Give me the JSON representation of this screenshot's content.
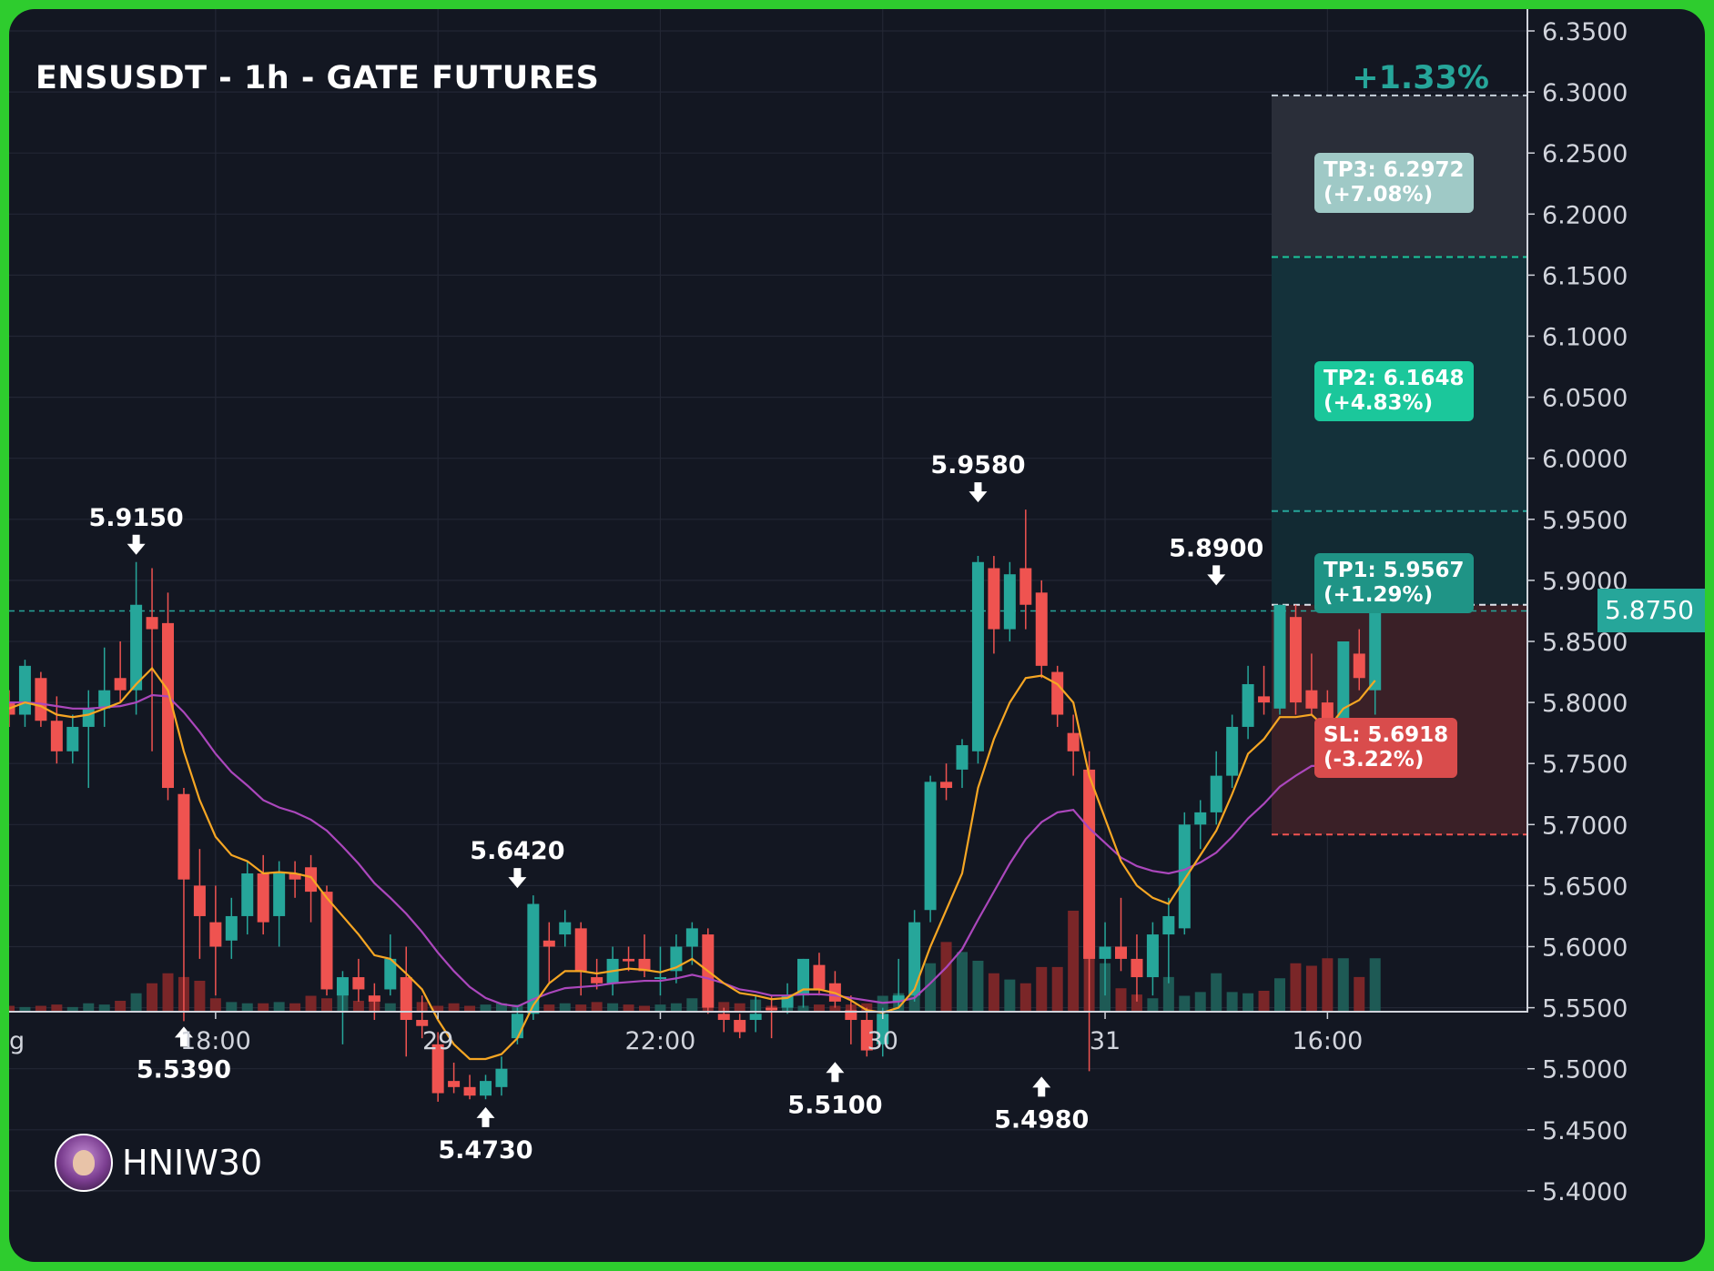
{
  "header": {
    "title": "ENSUSDT - 1h - GATE FUTURES",
    "change": "+1.33%"
  },
  "brand": {
    "name": "HNIW30"
  },
  "current_price": "5.8750",
  "targets": [
    {
      "label": "TP3: 6.2972\n(+7.08%)",
      "price": 6.2972,
      "zone_color": "#2a2e39",
      "label_color": "#9fc9c6",
      "line_color": "#c8d2dc"
    },
    {
      "label": "TP2: 6.1648\n(+4.83%)",
      "price": 6.1648,
      "zone_color": "#14313a",
      "label_color": "#1bc79b",
      "line_color": "#1bc79b"
    },
    {
      "label": "TP1: 5.9567\n(+1.29%)",
      "price": 5.9567,
      "zone_color": "#122a33",
      "label_color": "#1f9486",
      "line_color": "#26a69a"
    }
  ],
  "stop_loss": {
    "label": "SL: 5.6918\n(-3.22%)",
    "price": 5.6918,
    "zone_color": "#3a2027",
    "label_color": "#d94c4c",
    "line_color": "#ef5350"
  },
  "entry_line": 5.88,
  "annotations": [
    {
      "text": "5.9150",
      "candle": 8,
      "dir": "down",
      "price": 5.915
    },
    {
      "text": "5.5390",
      "candle": 11,
      "dir": "up",
      "price": 5.539
    },
    {
      "text": "5.4730",
      "candle": 30,
      "dir": "up",
      "price": 5.473
    },
    {
      "text": "5.6420",
      "candle": 32,
      "dir": "down",
      "price": 5.642
    },
    {
      "text": "5.5100",
      "candle": 52,
      "dir": "up",
      "price": 5.51
    },
    {
      "text": "5.9580",
      "candle": 61,
      "dir": "down",
      "price": 5.958
    },
    {
      "text": "5.4980",
      "candle": 65,
      "dir": "up",
      "price": 5.498
    },
    {
      "text": "5.8900",
      "candle": 76,
      "dir": "down",
      "price": 5.89
    }
  ],
  "colors": {
    "up": "#26a69a",
    "down": "#ef5350",
    "grid": "#232734",
    "axis": "#d1d4dc",
    "ema_fast": "#f6a623",
    "ema_slow": "#ab47bc",
    "vol_up": "#1e5a55",
    "vol_down": "#7a2628"
  },
  "chart_data": {
    "type": "candlestick",
    "title": "ENSUSDT - 1h - GATE FUTURES",
    "ylim": [
      5.38,
      6.36
    ],
    "y_ticks": [
      "6.3500",
      "6.3000",
      "6.2500",
      "6.2000",
      "6.1500",
      "6.1000",
      "6.0500",
      "6.0000",
      "5.9500",
      "5.9000",
      "5.8500",
      "5.8000",
      "5.7500",
      "5.7000",
      "5.6500",
      "5.6000",
      "5.5500",
      "5.5000",
      "5.4500",
      "5.4000"
    ],
    "x_ticks": [
      {
        "label": "g",
        "candle": -0.3
      },
      {
        "label": "18:00",
        "candle": 13
      },
      {
        "label": "29",
        "candle": 27
      },
      {
        "label": "22:00",
        "candle": 41
      },
      {
        "label": "30",
        "candle": 55
      },
      {
        "label": "31",
        "candle": 69
      },
      {
        "label": "16:00",
        "candle": 83
      }
    ],
    "ohlc": [
      [
        5.8,
        5.81,
        5.78,
        5.79
      ],
      [
        5.79,
        5.835,
        5.78,
        5.83
      ],
      [
        5.82,
        5.825,
        5.78,
        5.785
      ],
      [
        5.785,
        5.805,
        5.75,
        5.76
      ],
      [
        5.76,
        5.79,
        5.75,
        5.78
      ],
      [
        5.78,
        5.81,
        5.73,
        5.795
      ],
      [
        5.795,
        5.845,
        5.78,
        5.81
      ],
      [
        5.82,
        5.85,
        5.8,
        5.81
      ],
      [
        5.81,
        5.915,
        5.79,
        5.88
      ],
      [
        5.87,
        5.91,
        5.76,
        5.86
      ],
      [
        5.865,
        5.89,
        5.72,
        5.73
      ],
      [
        5.725,
        5.73,
        5.539,
        5.655
      ],
      [
        5.65,
        5.68,
        5.59,
        5.625
      ],
      [
        5.62,
        5.65,
        5.56,
        5.6
      ],
      [
        5.605,
        5.64,
        5.59,
        5.625
      ],
      [
        5.625,
        5.67,
        5.61,
        5.66
      ],
      [
        5.66,
        5.675,
        5.61,
        5.62
      ],
      [
        5.625,
        5.67,
        5.6,
        5.66
      ],
      [
        5.66,
        5.67,
        5.64,
        5.655
      ],
      [
        5.665,
        5.675,
        5.62,
        5.645
      ],
      [
        5.645,
        5.65,
        5.56,
        5.565
      ],
      [
        5.56,
        5.58,
        5.52,
        5.575
      ],
      [
        5.575,
        5.59,
        5.555,
        5.565
      ],
      [
        5.56,
        5.57,
        5.54,
        5.555
      ],
      [
        5.565,
        5.61,
        5.56,
        5.59
      ],
      [
        5.575,
        5.6,
        5.51,
        5.54
      ],
      [
        5.54,
        5.56,
        5.525,
        5.535
      ],
      [
        5.52,
        5.53,
        5.473,
        5.48
      ],
      [
        5.49,
        5.505,
        5.48,
        5.485
      ],
      [
        5.485,
        5.495,
        5.475,
        5.478
      ],
      [
        5.478,
        5.495,
        5.475,
        5.49
      ],
      [
        5.485,
        5.51,
        5.478,
        5.5
      ],
      [
        5.525,
        5.55,
        5.52,
        5.545
      ],
      [
        5.545,
        5.642,
        5.54,
        5.635
      ],
      [
        5.605,
        5.62,
        5.57,
        5.6
      ],
      [
        5.61,
        5.63,
        5.6,
        5.62
      ],
      [
        5.615,
        5.62,
        5.56,
        5.58
      ],
      [
        5.575,
        5.59,
        5.565,
        5.57
      ],
      [
        5.57,
        5.6,
        5.56,
        5.59
      ],
      [
        5.59,
        5.6,
        5.58,
        5.588
      ],
      [
        5.59,
        5.61,
        5.575,
        5.58
      ],
      [
        5.575,
        5.6,
        5.56,
        5.575
      ],
      [
        5.58,
        5.61,
        5.57,
        5.6
      ],
      [
        5.6,
        5.62,
        5.585,
        5.615
      ],
      [
        5.61,
        5.615,
        5.545,
        5.55
      ],
      [
        5.545,
        5.55,
        5.53,
        5.54
      ],
      [
        5.54,
        5.545,
        5.525,
        5.53
      ],
      [
        5.54,
        5.56,
        5.53,
        5.545
      ],
      [
        5.55,
        5.56,
        5.525,
        5.548
      ],
      [
        5.55,
        5.57,
        5.545,
        5.56
      ],
      [
        5.56,
        5.59,
        5.55,
        5.59
      ],
      [
        5.585,
        5.595,
        5.56,
        5.565
      ],
      [
        5.57,
        5.58,
        5.55,
        5.555
      ],
      [
        5.548,
        5.56,
        5.52,
        5.54
      ],
      [
        5.54,
        5.55,
        5.51,
        5.515
      ],
      [
        5.52,
        5.55,
        5.51,
        5.545
      ],
      [
        5.555,
        5.59,
        5.55,
        5.56
      ],
      [
        5.56,
        5.63,
        5.555,
        5.62
      ],
      [
        5.63,
        5.74,
        5.62,
        5.735
      ],
      [
        5.735,
        5.75,
        5.72,
        5.73
      ],
      [
        5.745,
        5.77,
        5.73,
        5.765
      ],
      [
        5.76,
        5.92,
        5.75,
        5.915
      ],
      [
        5.91,
        5.92,
        5.84,
        5.86
      ],
      [
        5.86,
        5.915,
        5.85,
        5.905
      ],
      [
        5.91,
        5.958,
        5.86,
        5.88
      ],
      [
        5.89,
        5.9,
        5.82,
        5.83
      ],
      [
        5.825,
        5.83,
        5.78,
        5.79
      ],
      [
        5.775,
        5.79,
        5.74,
        5.76
      ],
      [
        5.745,
        5.76,
        5.498,
        5.59
      ],
      [
        5.59,
        5.62,
        5.56,
        5.6
      ],
      [
        5.6,
        5.64,
        5.58,
        5.59
      ],
      [
        5.59,
        5.61,
        5.555,
        5.575
      ],
      [
        5.575,
        5.62,
        5.56,
        5.61
      ],
      [
        5.61,
        5.64,
        5.57,
        5.625
      ],
      [
        5.615,
        5.71,
        5.61,
        5.7
      ],
      [
        5.7,
        5.72,
        5.68,
        5.71
      ],
      [
        5.71,
        5.76,
        5.7,
        5.74
      ],
      [
        5.74,
        5.79,
        5.73,
        5.78
      ],
      [
        5.78,
        5.83,
        5.77,
        5.815
      ],
      [
        5.805,
        5.83,
        5.79,
        5.8
      ],
      [
        5.795,
        5.88,
        5.79,
        5.88
      ],
      [
        5.87,
        5.88,
        5.79,
        5.8
      ],
      [
        5.81,
        5.84,
        5.79,
        5.795
      ],
      [
        5.8,
        5.81,
        5.74,
        5.745
      ],
      [
        5.745,
        5.85,
        5.74,
        5.85
      ],
      [
        5.84,
        5.86,
        5.81,
        5.82
      ],
      [
        5.81,
        5.875,
        5.79,
        5.875
      ]
    ],
    "ema_fast": [
      5.795,
      5.8,
      5.797,
      5.79,
      5.788,
      5.79,
      5.795,
      5.8,
      5.815,
      5.828,
      5.81,
      5.76,
      5.72,
      5.69,
      5.675,
      5.67,
      5.66,
      5.661,
      5.66,
      5.657,
      5.64,
      5.625,
      5.61,
      5.593,
      5.59,
      5.578,
      5.565,
      5.54,
      5.52,
      5.508,
      5.508,
      5.512,
      5.525,
      5.552,
      5.57,
      5.58,
      5.58,
      5.578,
      5.58,
      5.582,
      5.581,
      5.579,
      5.583,
      5.59,
      5.58,
      5.57,
      5.562,
      5.56,
      5.557,
      5.558,
      5.565,
      5.565,
      5.562,
      5.556,
      5.548,
      5.546,
      5.55,
      5.565,
      5.6,
      5.63,
      5.66,
      5.73,
      5.77,
      5.8,
      5.82,
      5.822,
      5.815,
      5.8,
      5.74,
      5.705,
      5.67,
      5.65,
      5.64,
      5.635,
      5.655,
      5.675,
      5.695,
      5.725,
      5.758,
      5.77,
      5.788,
      5.788,
      5.79,
      5.778,
      5.795,
      5.802,
      5.818
    ],
    "ema_slow": [
      5.8,
      5.8,
      5.799,
      5.797,
      5.795,
      5.795,
      5.796,
      5.797,
      5.8,
      5.806,
      5.805,
      5.792,
      5.776,
      5.758,
      5.743,
      5.732,
      5.72,
      5.714,
      5.71,
      5.704,
      5.695,
      5.682,
      5.668,
      5.652,
      5.64,
      5.627,
      5.612,
      5.595,
      5.58,
      5.567,
      5.558,
      5.553,
      5.551,
      5.557,
      5.562,
      5.566,
      5.567,
      5.568,
      5.57,
      5.571,
      5.572,
      5.572,
      5.574,
      5.577,
      5.574,
      5.57,
      5.565,
      5.563,
      5.56,
      5.56,
      5.561,
      5.561,
      5.56,
      5.558,
      5.556,
      5.554,
      5.555,
      5.558,
      5.57,
      5.583,
      5.598,
      5.622,
      5.645,
      5.668,
      5.688,
      5.702,
      5.71,
      5.712,
      5.697,
      5.685,
      5.673,
      5.666,
      5.662,
      5.66,
      5.663,
      5.669,
      5.677,
      5.69,
      5.705,
      5.717,
      5.731,
      5.74,
      5.748,
      5.748,
      5.756,
      5.762,
      5.772
    ],
    "volume": [
      4,
      3,
      4,
      5,
      3,
      6,
      5,
      8,
      14,
      22,
      30,
      27,
      24,
      10,
      7,
      6,
      6,
      7,
      6,
      12,
      10,
      13,
      8,
      10,
      6,
      9,
      7,
      4,
      6,
      4,
      5,
      6,
      5,
      8,
      5,
      6,
      5,
      7,
      6,
      5,
      4,
      5,
      6,
      10,
      6,
      7,
      6,
      9,
      4,
      6,
      4,
      5,
      4,
      5,
      6,
      12,
      14,
      30,
      38,
      55,
      47,
      40,
      30,
      25,
      22,
      35,
      35,
      80,
      45,
      38,
      18,
      13,
      10,
      27,
      12,
      15,
      30,
      15,
      14,
      16,
      26,
      38,
      36,
      42,
      42,
      27,
      42
    ],
    "volume_max": 80
  }
}
